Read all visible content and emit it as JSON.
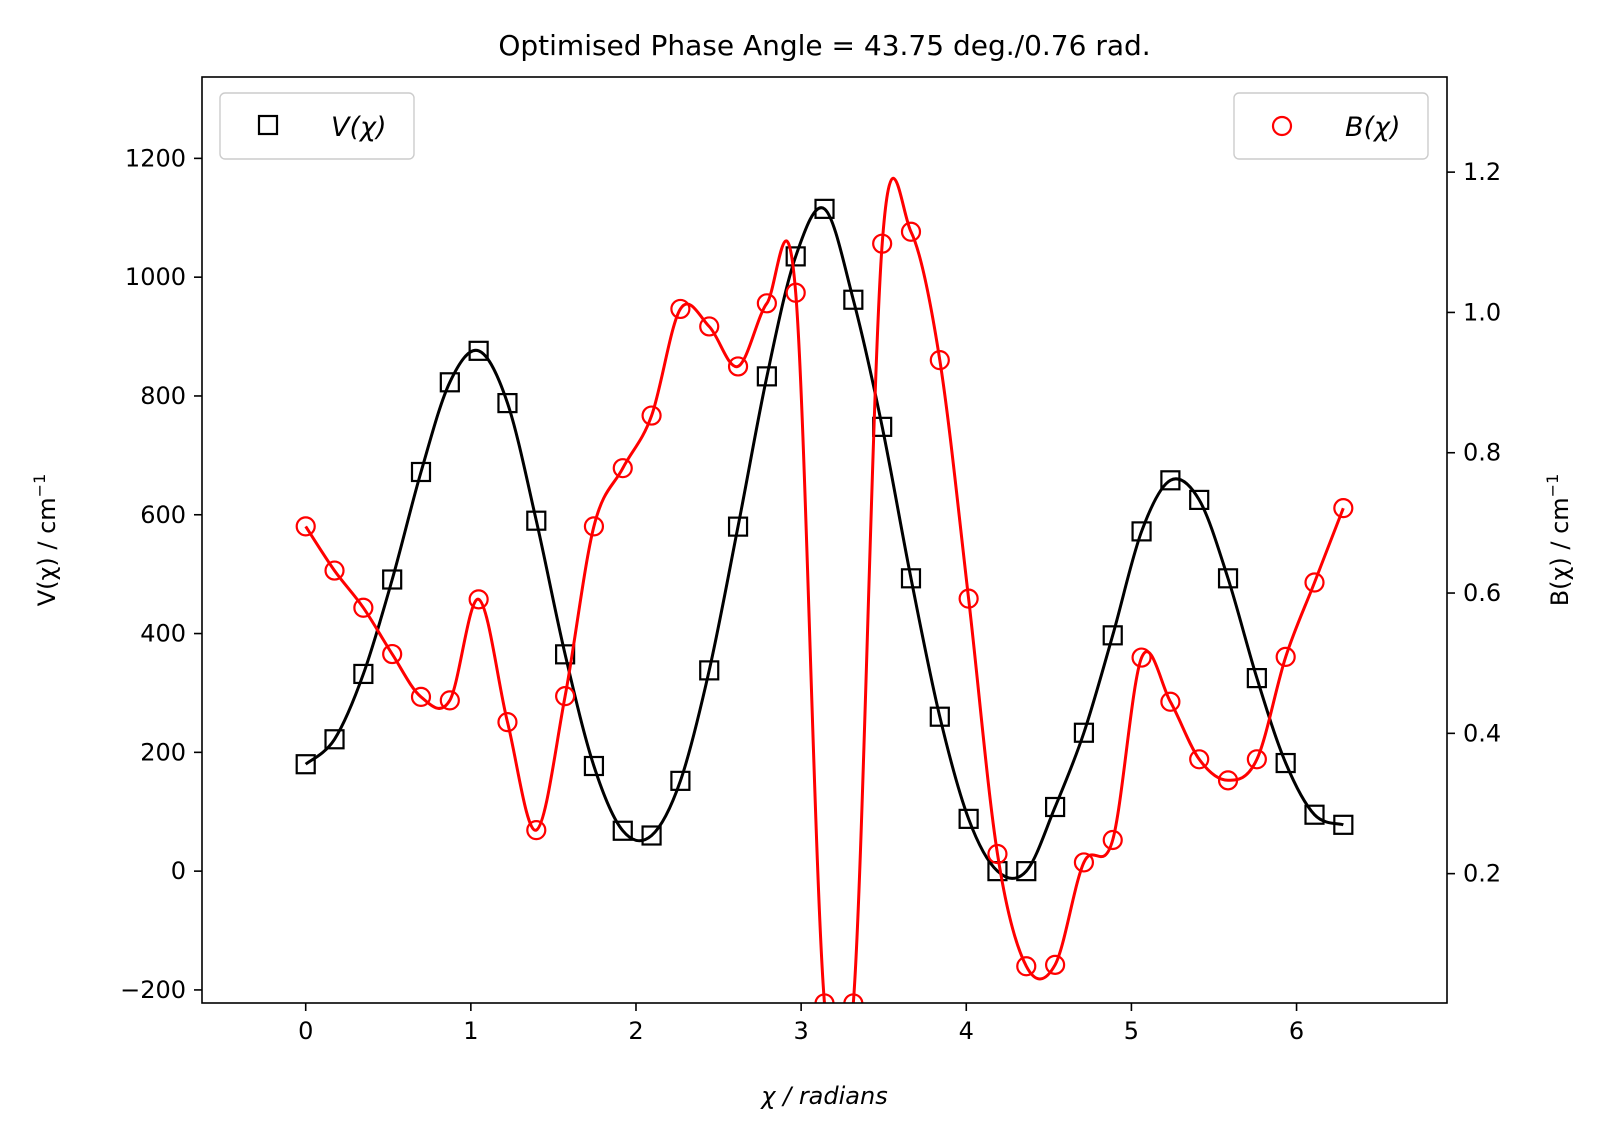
{
  "chart_data": {
    "type": "scatter",
    "title": "Optimised Phase Angle = 43.75 deg./0.76 rad.",
    "x": [
      0,
      0.1745,
      0.3491,
      0.5236,
      0.6981,
      0.8727,
      1.0472,
      1.2217,
      1.3963,
      1.5708,
      1.7453,
      1.9199,
      2.0944,
      2.2689,
      2.4435,
      2.618,
      2.7925,
      2.9671,
      3.1416,
      3.3161,
      3.4907,
      3.6652,
      3.8397,
      4.0143,
      4.1888,
      4.3633,
      4.5379,
      4.7124,
      4.8869,
      5.0615,
      5.236,
      5.4105,
      5.5851,
      5.7596,
      5.9341,
      6.1087,
      6.2832
    ],
    "xlabel": "χ / radians",
    "xlim": [
      -0.628,
      6.911
    ],
    "xticks": [
      "0",
      "1",
      "2",
      "3",
      "4",
      "5",
      "6"
    ],
    "left_axis": {
      "ylabel_main": "V(χ) / cm",
      "ylabel_sup": "−1",
      "ylim": [
        -222,
        1337
      ],
      "yticks": [
        "−200",
        "0",
        "200",
        "400",
        "600",
        "800",
        "1000",
        "1200"
      ]
    },
    "right_axis": {
      "ylabel_main": "B(χ) / cm",
      "ylabel_sup": "−1",
      "ylim": [
        0.0156,
        1.3356
      ],
      "yticks": [
        "0.2",
        "0.4",
        "0.6",
        "0.8",
        "1.0",
        "1.2"
      ]
    },
    "series": [
      {
        "name": "V(χ)",
        "axis": "left",
        "marker": "square",
        "color": "#000000",
        "values": [
          180,
          222,
          332,
          491,
          672,
          823,
          876,
          788,
          590,
          365,
          177,
          68,
          60,
          152,
          338,
          580,
          833,
          1035,
          1115,
          962,
          748,
          493,
          260,
          88,
          0,
          0,
          108,
          233,
          397,
          572,
          658,
          625,
          493,
          325,
          182,
          95,
          78
        ]
      },
      {
        "name": "B(χ)",
        "axis": "right",
        "marker": "circle",
        "color": "#ff0000",
        "values": [
          0.695,
          0.632,
          0.579,
          0.513,
          0.452,
          0.447,
          0.591,
          0.416,
          0.262,
          0.453,
          0.695,
          0.778,
          0.853,
          1.005,
          0.98,
          0.923,
          1.013,
          1.028,
          0.015,
          0.015,
          1.098,
          1.115,
          0.932,
          0.592,
          0.228,
          0.068,
          0.07,
          0.216,
          0.248,
          0.508,
          0.445,
          0.363,
          0.333,
          0.363,
          0.509,
          0.615,
          0.721
        ]
      }
    ],
    "legend": {
      "left": "upper-left",
      "right": "upper-right"
    }
  }
}
